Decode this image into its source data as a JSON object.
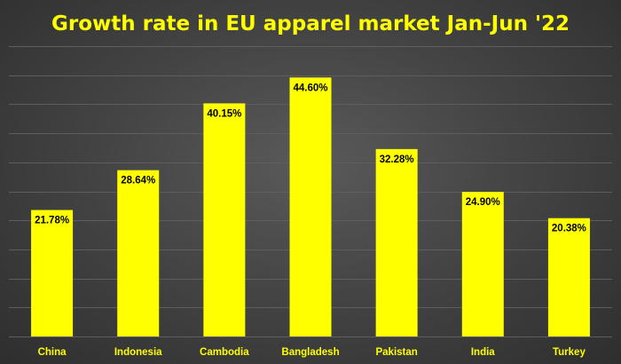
{
  "colors": {
    "bar": "#ffff00",
    "title": "#ffff00",
    "tick_label": "#ffff00",
    "data_label": "#000000",
    "gridline": "#5e5e5e"
  },
  "chart_data": {
    "type": "bar",
    "title": "Growth rate in EU apparel market Jan-Jun '22",
    "xlabel": "",
    "ylabel": "",
    "categories": [
      "China",
      "Indonesia",
      "Cambodia",
      "Bangladesh",
      "Pakistan",
      "India",
      "Turkey"
    ],
    "values": [
      21.78,
      28.64,
      40.15,
      44.6,
      32.28,
      24.9,
      20.38
    ],
    "data_labels": [
      "21.78%",
      "28.64%",
      "40.15%",
      "44.60%",
      "32.28%",
      "24.90%",
      "20.38%"
    ],
    "ylim": [
      0,
      50
    ],
    "grid": true,
    "legend": "none"
  }
}
